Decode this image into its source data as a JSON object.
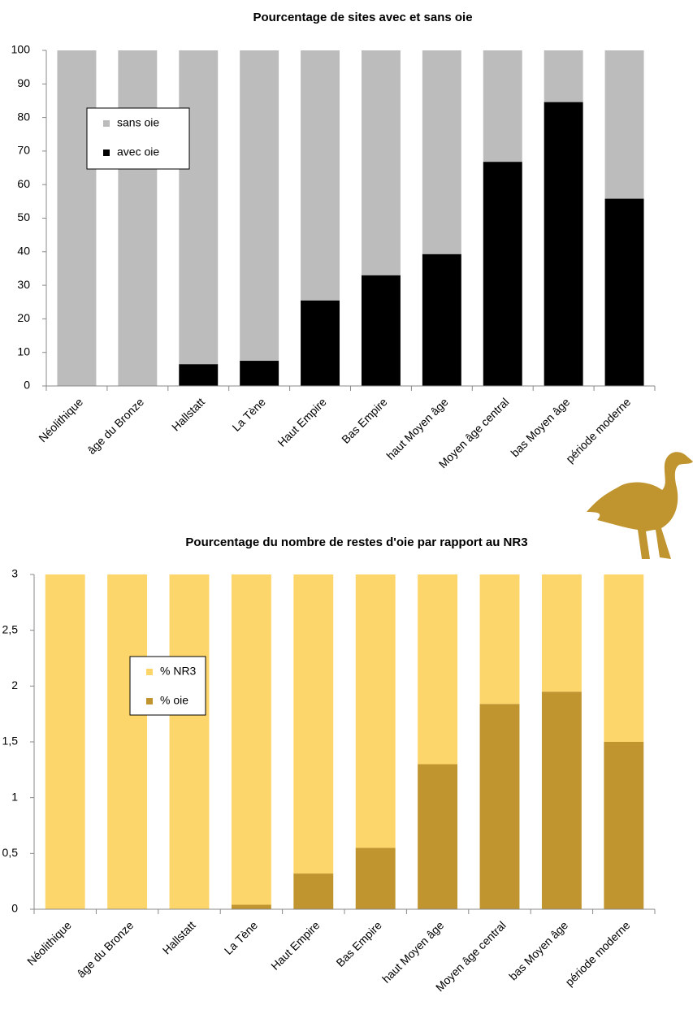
{
  "chart_data": [
    {
      "type": "stacked-bar",
      "title": "Pourcentage de sites avec et sans oie",
      "categories": [
        "Néolithique",
        "âge du Bronze",
        "Hallstatt",
        "La Tène",
        "Haut Empire",
        "Bas Empire",
        "haut Moyen âge",
        "Moyen âge central",
        "bas Moyen âge",
        "période moderne"
      ],
      "series": [
        {
          "name": "avec oie",
          "color": "#000000",
          "values": [
            0,
            0,
            6.5,
            7.5,
            25.5,
            33,
            39.3,
            66.8,
            84.6,
            55.8
          ]
        },
        {
          "name": "sans oie",
          "color": "#bdbcbd",
          "values": [
            100,
            100,
            93.5,
            92.5,
            74.5,
            67,
            60.7,
            33.2,
            15.4,
            44.2
          ]
        }
      ],
      "ylim": [
        0,
        100
      ],
      "yticks": [
        0,
        10,
        20,
        30,
        40,
        50,
        60,
        70,
        80,
        90,
        100
      ]
    },
    {
      "type": "stacked-bar",
      "title": "Pourcentage du nombre de restes d'oie par rapport au NR3",
      "categories": [
        "Néolithique",
        "âge du Bronze",
        "Hallstatt",
        "La Tène",
        "Haut Empire",
        "Bas Empire",
        "haut Moyen âge",
        "Moyen âge central",
        "bas Moyen âge",
        "période moderne"
      ],
      "series": [
        {
          "name": "% oie",
          "color": "#c0952f",
          "values": [
            0,
            0,
            0,
            0.04,
            0.32,
            0.55,
            1.3,
            1.84,
            1.95,
            1.5
          ]
        },
        {
          "name": "% NR3",
          "color": "#fdd66b",
          "values": [
            3,
            3,
            3,
            2.96,
            2.68,
            2.45,
            1.7,
            1.16,
            1.05,
            1.5
          ]
        }
      ],
      "ylim": [
        0,
        3
      ],
      "yticks": [
        0,
        {
          "value": 0.5,
          "label": "0,5"
        },
        1,
        {
          "value": 1.5,
          "label": "1,5"
        },
        2,
        {
          "value": 2.5,
          "label": "2,5"
        },
        3
      ]
    }
  ]
}
